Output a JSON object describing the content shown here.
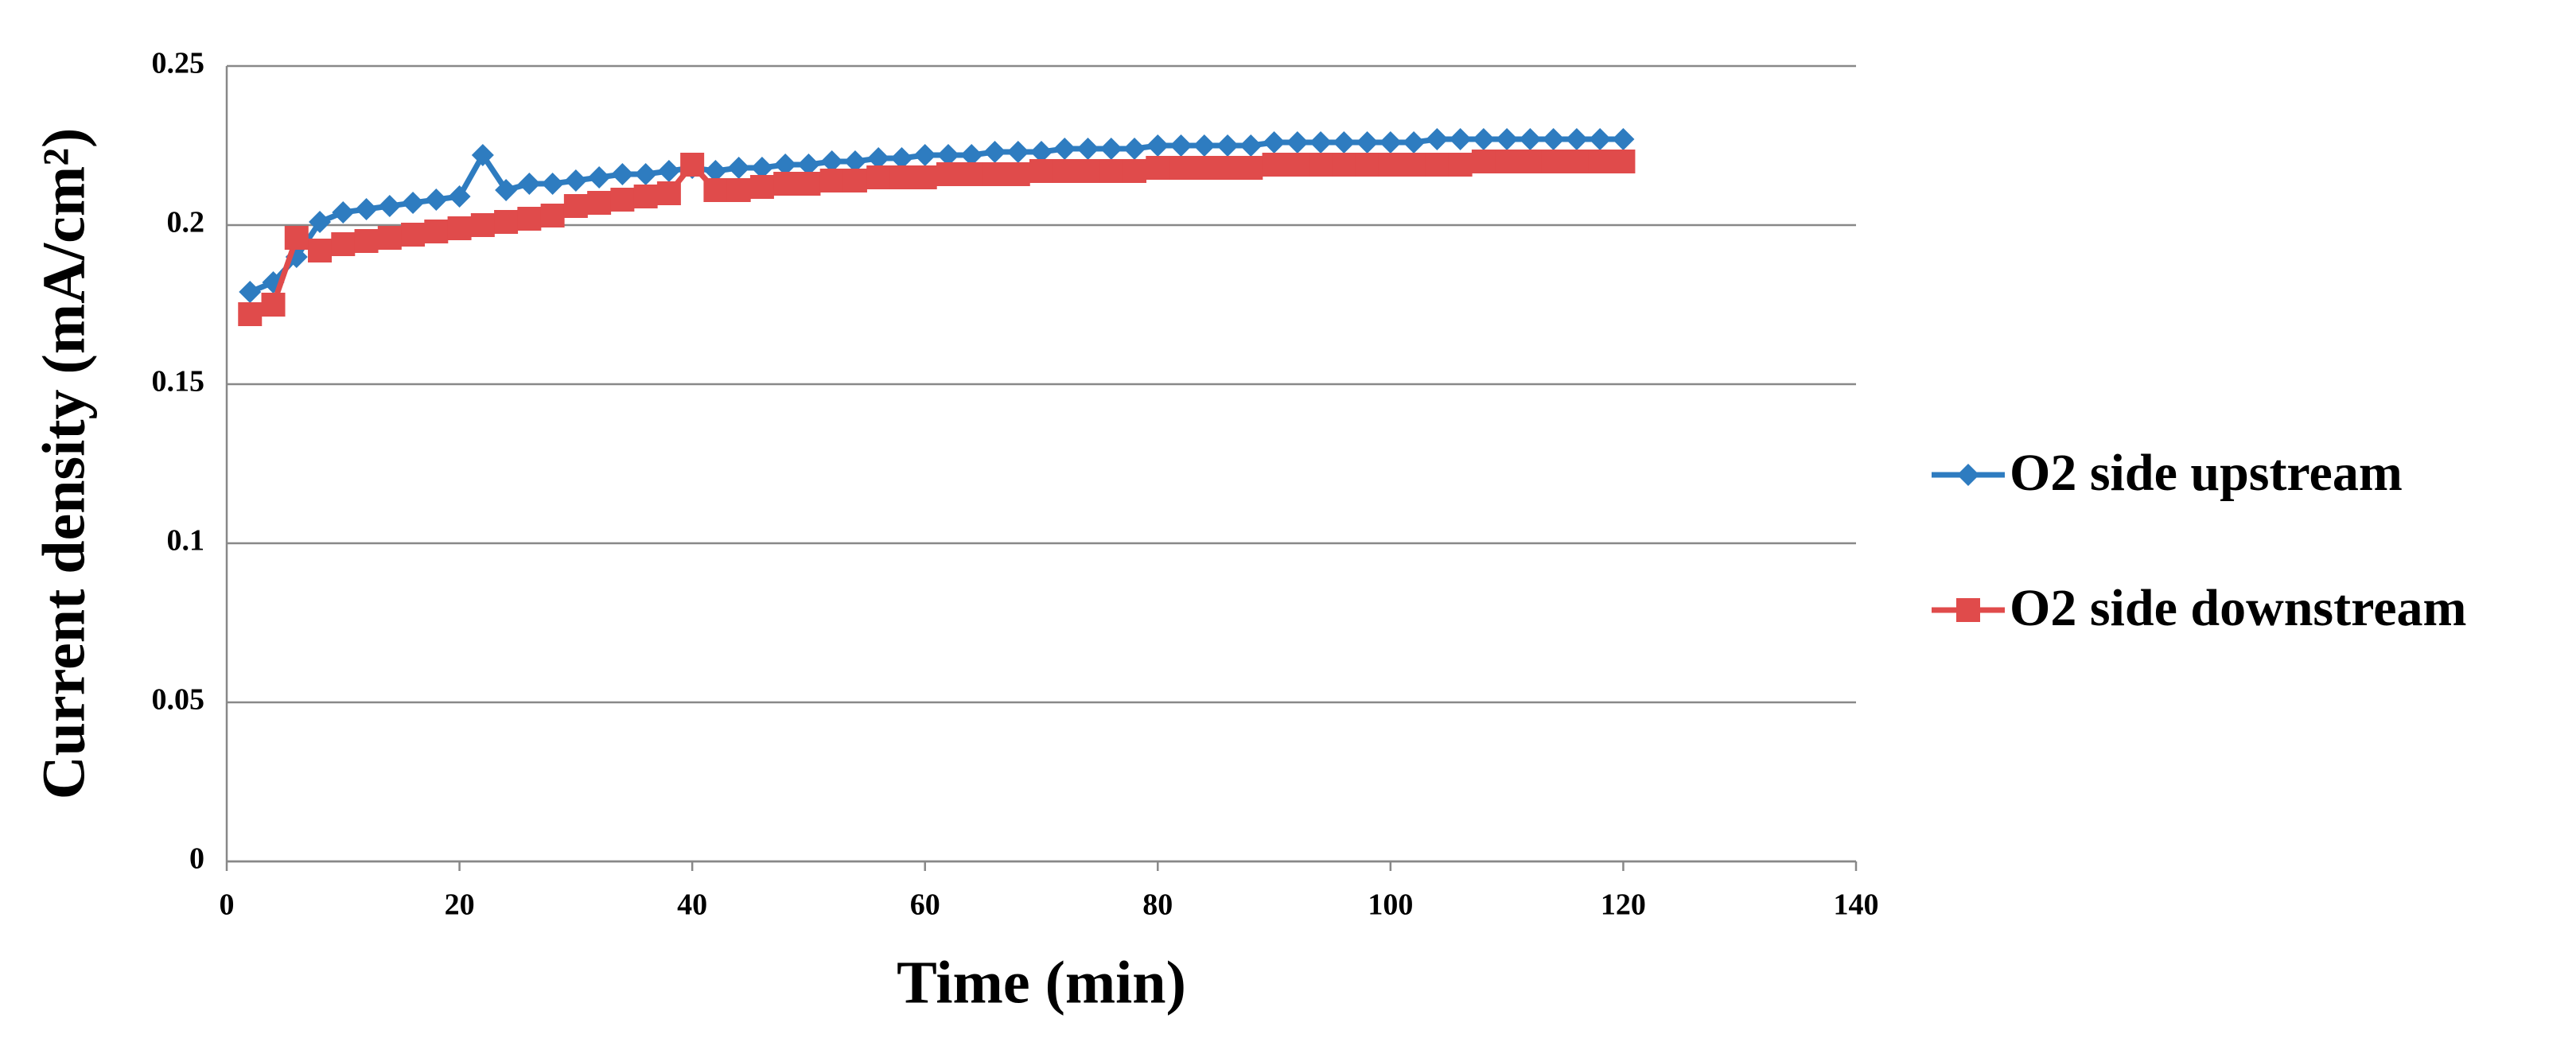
{
  "chart_data": {
    "type": "line",
    "xlabel": "Time (min)",
    "ylabel": "Current density (mA/cm²)",
    "x": [
      2,
      4,
      6,
      8,
      10,
      12,
      14,
      16,
      18,
      20,
      22,
      24,
      26,
      28,
      30,
      32,
      34,
      36,
      38,
      40,
      42,
      44,
      46,
      48,
      50,
      52,
      54,
      56,
      58,
      60,
      62,
      64,
      66,
      68,
      70,
      72,
      74,
      76,
      78,
      80,
      82,
      84,
      86,
      88,
      90,
      92,
      94,
      96,
      98,
      100,
      102,
      104,
      106,
      108,
      110,
      112,
      114,
      116,
      118,
      120
    ],
    "series": [
      {
        "name": "O2 side upstream",
        "color": "#2e7cc0",
        "marker": "diamond",
        "values": [
          0.179,
          0.182,
          0.19,
          0.201,
          0.204,
          0.205,
          0.206,
          0.207,
          0.208,
          0.209,
          0.222,
          0.211,
          0.213,
          0.213,
          0.214,
          0.215,
          0.216,
          0.216,
          0.217,
          0.218,
          0.217,
          0.218,
          0.218,
          0.219,
          0.219,
          0.22,
          0.22,
          0.221,
          0.221,
          0.222,
          0.222,
          0.222,
          0.223,
          0.223,
          0.223,
          0.224,
          0.224,
          0.224,
          0.224,
          0.225,
          0.225,
          0.225,
          0.225,
          0.225,
          0.226,
          0.226,
          0.226,
          0.226,
          0.226,
          0.226,
          0.226,
          0.227,
          0.227,
          0.227,
          0.227,
          0.227,
          0.227,
          0.227,
          0.227,
          0.227
        ]
      },
      {
        "name": "O2 side downstream",
        "color": "#e04b4b",
        "marker": "square",
        "values": [
          0.172,
          0.175,
          0.196,
          0.192,
          0.194,
          0.195,
          0.196,
          0.197,
          0.198,
          0.199,
          0.2,
          0.201,
          0.202,
          0.203,
          0.206,
          0.207,
          0.208,
          0.209,
          0.21,
          0.219,
          0.211,
          0.211,
          0.212,
          0.213,
          0.213,
          0.214,
          0.214,
          0.215,
          0.215,
          0.215,
          0.216,
          0.216,
          0.216,
          0.216,
          0.217,
          0.217,
          0.217,
          0.217,
          0.217,
          0.218,
          0.218,
          0.218,
          0.218,
          0.218,
          0.219,
          0.219,
          0.219,
          0.219,
          0.219,
          0.219,
          0.219,
          0.219,
          0.219,
          0.22,
          0.22,
          0.22,
          0.22,
          0.22,
          0.22,
          0.22
        ]
      }
    ],
    "xlim": [
      0,
      140
    ],
    "xticks": [
      0,
      20,
      40,
      60,
      80,
      100,
      120,
      140
    ],
    "ylim": [
      0,
      0.25
    ],
    "yticks": [
      0,
      0.05,
      0.1,
      0.15,
      0.2,
      0.25
    ],
    "grid": true,
    "legend": "right"
  }
}
